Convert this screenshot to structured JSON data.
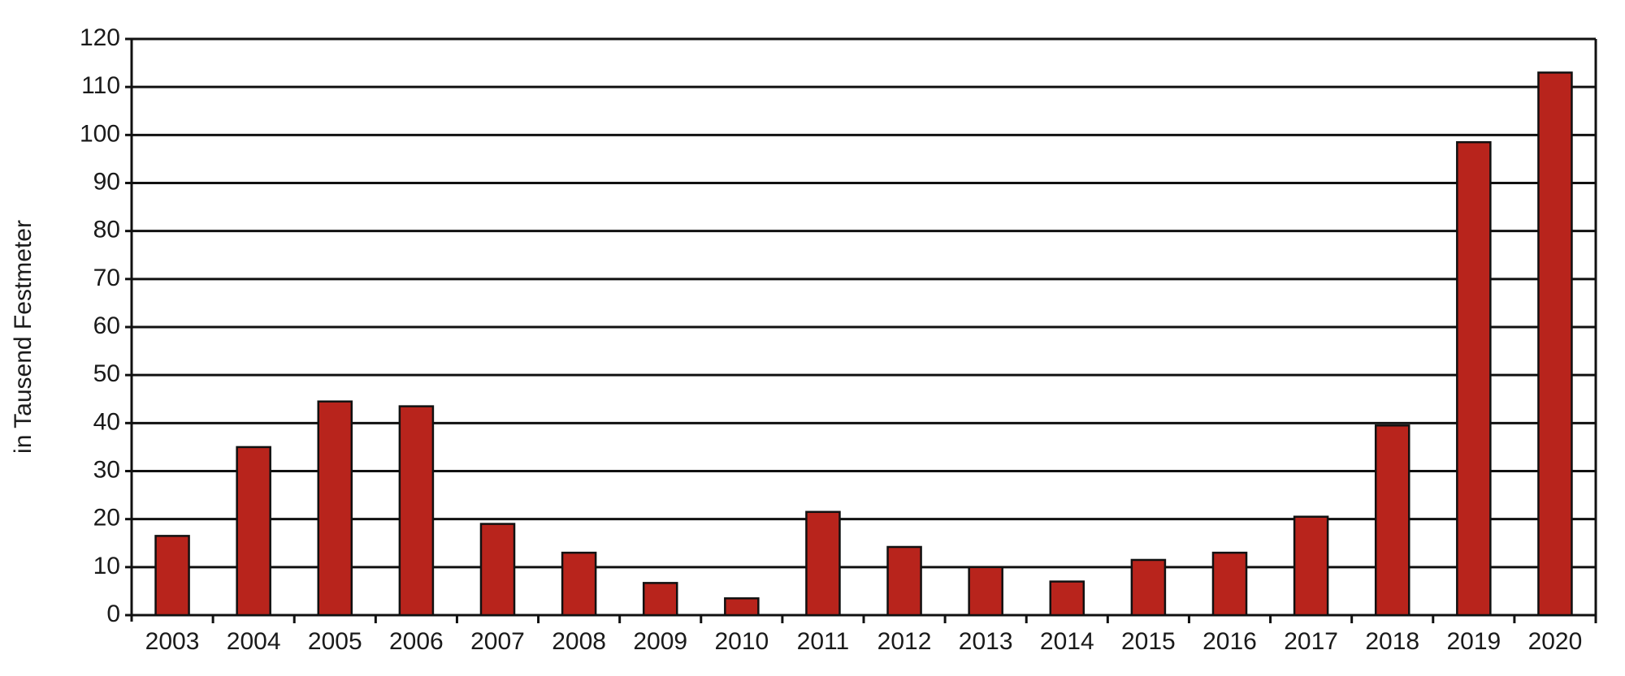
{
  "chart_data": {
    "type": "bar",
    "y_label": "in Tausend Festmeter",
    "categories": [
      "2003",
      "2004",
      "2005",
      "2006",
      "2007",
      "2008",
      "2009",
      "2010",
      "2011",
      "2012",
      "2013",
      "2014",
      "2015",
      "2016",
      "2017",
      "2018",
      "2019",
      "2020"
    ],
    "values": [
      16.5,
      35,
      44.5,
      43.5,
      19,
      13,
      6.7,
      3.5,
      21.5,
      14.2,
      10,
      7,
      11.5,
      13,
      20.5,
      39.5,
      98.5,
      113
    ],
    "color": "#b8241c",
    "ylim": [
      0,
      120
    ],
    "yticks": [
      0,
      10,
      20,
      30,
      40,
      50,
      60,
      70,
      80,
      90,
      100,
      110,
      120
    ],
    "grid": true
  }
}
